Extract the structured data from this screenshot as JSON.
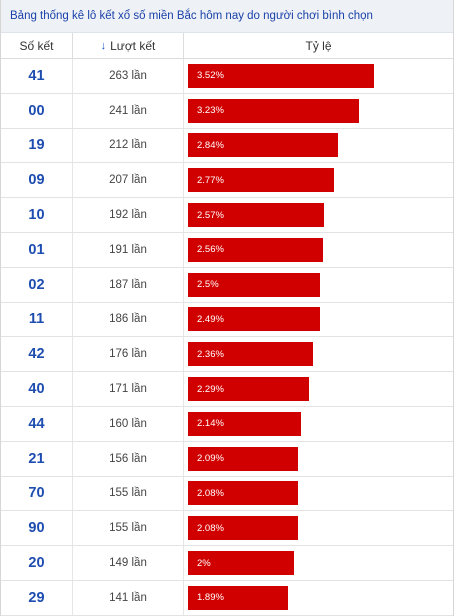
{
  "title": "Bảng thống kê lô kết xổ số miền Bắc hôm nay do người chơi bình chọn",
  "columns": {
    "number": "Số kết",
    "count": "Lượt kết",
    "ratio": "Tỷ lệ",
    "sort_icon": "arrow-down-icon"
  },
  "bar_color": "#d10000",
  "rows": [
    {
      "number": "41",
      "count": "263 lần",
      "percent": "3.52%",
      "value": 3.52
    },
    {
      "number": "00",
      "count": "241 lần",
      "percent": "3.23%",
      "value": 3.23
    },
    {
      "number": "19",
      "count": "212 lần",
      "percent": "2.84%",
      "value": 2.84
    },
    {
      "number": "09",
      "count": "207 lần",
      "percent": "2.77%",
      "value": 2.77
    },
    {
      "number": "10",
      "count": "192 lần",
      "percent": "2.57%",
      "value": 2.57
    },
    {
      "number": "01",
      "count": "191 lần",
      "percent": "2.56%",
      "value": 2.56
    },
    {
      "number": "02",
      "count": "187 lần",
      "percent": "2.5%",
      "value": 2.5
    },
    {
      "number": "11",
      "count": "186 lần",
      "percent": "2.49%",
      "value": 2.49
    },
    {
      "number": "42",
      "count": "176 lần",
      "percent": "2.36%",
      "value": 2.36
    },
    {
      "number": "40",
      "count": "171 lần",
      "percent": "2.29%",
      "value": 2.29
    },
    {
      "number": "44",
      "count": "160 lần",
      "percent": "2.14%",
      "value": 2.14
    },
    {
      "number": "21",
      "count": "156 lần",
      "percent": "2.09%",
      "value": 2.09
    },
    {
      "number": "70",
      "count": "155 lần",
      "percent": "2.08%",
      "value": 2.08
    },
    {
      "number": "90",
      "count": "155 lần",
      "percent": "2.08%",
      "value": 2.08
    },
    {
      "number": "20",
      "count": "149 lần",
      "percent": "2%",
      "value": 2.0
    },
    {
      "number": "29",
      "count": "141 lần",
      "percent": "1.89%",
      "value": 1.89
    }
  ]
}
